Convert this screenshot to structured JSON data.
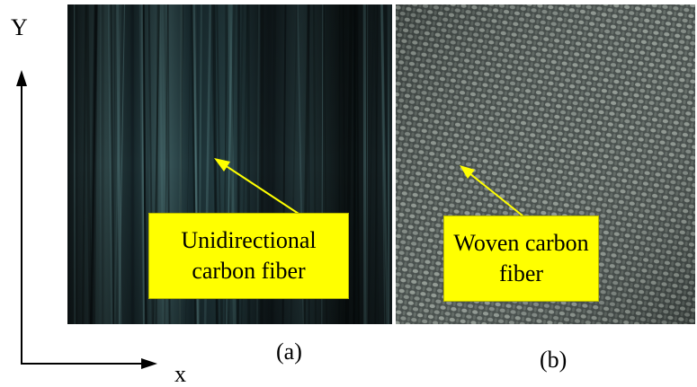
{
  "axes": {
    "y_label": "Y",
    "x_label": "x"
  },
  "panels": [
    {
      "callout_line1": "Unidirectional",
      "callout_line2": "carbon fiber",
      "caption": "(a)"
    },
    {
      "callout_line1": "Woven carbon",
      "callout_line2": "fiber",
      "caption": "(b)"
    }
  ],
  "colors": {
    "callout_bg": "#ffff00",
    "arrow": "#ffff00",
    "fiber_dark": "#101a1c",
    "weave": "#6c7570"
  }
}
